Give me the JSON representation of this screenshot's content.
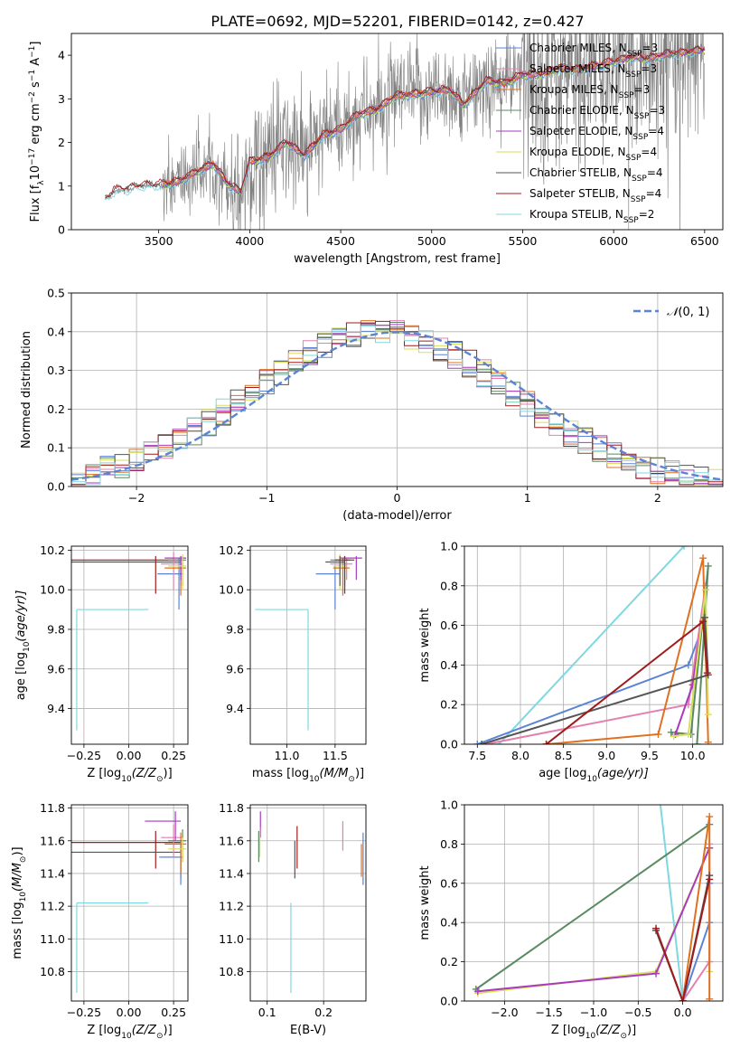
{
  "figure": {
    "title": "PLATE=0692, MJD=52201, FIBERID=0142, z=0.427"
  },
  "colors": {
    "chabrier_miles": "#5b84d6",
    "salpeter_miles": "#e47fb0",
    "kroupa_miles": "#e0701e",
    "chabrier_elodie": "#5a8a60",
    "salpeter_elodie": "#a93ac0",
    "kroupa_elodie": "#d8df5a",
    "chabrier_stelib": "#555555",
    "salpeter_stelib": "#a01c1c",
    "kroupa_stelib": "#7ed8e0",
    "data": "#808080",
    "normal": "#5b84d6",
    "grid": "#b0b0b0"
  },
  "chart_data": [
    {
      "id": "spectrum",
      "type": "line",
      "xlabel": "wavelength [Angstrom, rest frame]",
      "ylabel": "Flux [f",
      "ylabel_sub": "λ",
      "ylabel_rest": "10",
      "ylabel_exp1": "−17",
      "ylabel_mid": " erg cm",
      "ylabel_exp2": "−2",
      "ylabel_mid2": " s",
      "ylabel_exp3": "−1",
      "ylabel_mid3": " A",
      "ylabel_exp4": "−1",
      "ylabel_end": "]",
      "xlim": [
        3020,
        6600
      ],
      "ylim": [
        0,
        4.5
      ],
      "xticks": [
        3500,
        4000,
        4500,
        5000,
        5500,
        6000,
        6500
      ],
      "yticks": [
        0,
        1,
        2,
        3,
        4
      ],
      "legend_position": "top-right",
      "series_shape": [
        [
          3210,
          0.7
        ],
        [
          3260,
          0.9
        ],
        [
          3320,
          0.92
        ],
        [
          3400,
          1.0
        ],
        [
          3500,
          1.02
        ],
        [
          3600,
          1.08
        ],
        [
          3700,
          1.3
        ],
        [
          3800,
          1.5
        ],
        [
          3880,
          1.05
        ],
        [
          3950,
          0.85
        ],
        [
          4000,
          1.55
        ],
        [
          4100,
          1.65
        ],
        [
          4200,
          2.0
        ],
        [
          4300,
          1.7
        ],
        [
          4400,
          2.15
        ],
        [
          4500,
          2.3
        ],
        [
          4600,
          2.65
        ],
        [
          4700,
          2.75
        ],
        [
          4800,
          3.05
        ],
        [
          4900,
          3.1
        ],
        [
          5000,
          3.15
        ],
        [
          5100,
          3.2
        ],
        [
          5175,
          2.85
        ],
        [
          5300,
          3.4
        ],
        [
          5400,
          3.35
        ],
        [
          5500,
          3.55
        ],
        [
          5600,
          3.55
        ],
        [
          5700,
          3.7
        ],
        [
          5800,
          3.65
        ],
        [
          5900,
          3.75
        ],
        [
          6000,
          3.85
        ],
        [
          6100,
          3.95
        ],
        [
          6200,
          3.92
        ],
        [
          6300,
          4.02
        ],
        [
          6400,
          4.06
        ],
        [
          6500,
          4.12
        ]
      ],
      "legend": [
        {
          "label": "Chabrier MILES, N",
          "sub": "SSP",
          "suffix": "=3",
          "color_key": "chabrier_miles"
        },
        {
          "label": "Salpeter MILES, N",
          "sub": "SSP",
          "suffix": "=3",
          "color_key": "salpeter_miles"
        },
        {
          "label": "Kroupa MILES, N",
          "sub": "SSP",
          "suffix": "=3",
          "color_key": "kroupa_miles"
        },
        {
          "label": "Chabrier ELODIE, N",
          "sub": "SSP",
          "suffix": "=3",
          "color_key": "chabrier_elodie"
        },
        {
          "label": "Salpeter ELODIE, N",
          "sub": "SSP",
          "suffix": "=4",
          "color_key": "salpeter_elodie"
        },
        {
          "label": "Kroupa ELODIE, N",
          "sub": "SSP",
          "suffix": "=4",
          "color_key": "kroupa_elodie"
        },
        {
          "label": "Chabrier STELIB, N",
          "sub": "SSP",
          "suffix": "=4",
          "color_key": "chabrier_stelib"
        },
        {
          "label": "Salpeter STELIB, N",
          "sub": "SSP",
          "suffix": "=4",
          "color_key": "salpeter_stelib"
        },
        {
          "label": "Kroupa STELIB, N",
          "sub": "SSP",
          "suffix": "=2",
          "color_key": "kroupa_stelib"
        }
      ]
    },
    {
      "id": "residuals",
      "type": "line",
      "xlabel": "(data-model)/error",
      "ylabel": "Normed distribution",
      "xlim": [
        -2.5,
        2.5
      ],
      "ylim": [
        0,
        0.5
      ],
      "xticks": [
        -2,
        -1,
        0,
        1,
        2
      ],
      "xticklabels": [
        "−2",
        "−1",
        "0",
        "1",
        "2"
      ],
      "yticks": [
        0.0,
        0.1,
        0.2,
        0.3,
        0.4,
        0.5
      ],
      "yticklabels": [
        "0.0",
        "0.1",
        "0.2",
        "0.3",
        "0.4",
        "0.5"
      ],
      "legend_label": "(0, 1)",
      "legend_symbol": "𝒩",
      "legend_position": "top-right",
      "bins": 45
    },
    {
      "id": "age_Z",
      "type": "scatter",
      "xlabel": "Z [log",
      "xlabel_sub": "10",
      "xlabel_mid": "(Z/Z",
      "xlabel_sun": "⊙",
      "xlabel_end": ")]",
      "ylabel": "age  [log",
      "ylabel_sub": "10",
      "ylabel_end": "(age/yr)]",
      "xlim": [
        -0.32,
        0.33
      ],
      "ylim": [
        9.22,
        10.22
      ],
      "xticks": [
        -0.25,
        0.0,
        0.25
      ],
      "xticklabels": [
        "−0.25",
        "0.00",
        "0.25"
      ],
      "yticks": [
        9.4,
        9.6,
        9.8,
        10.0,
        10.2
      ],
      "yticklabels": [
        "9.4",
        "9.6",
        "9.8",
        "10.0",
        "10.2"
      ],
      "points": [
        {
          "key": "kroupa_stelib",
          "x": -0.29,
          "y": 9.9,
          "x0": -0.29,
          "x1": 0.11,
          "y0": 9.29,
          "y1": 9.9
        },
        {
          "key": "salpeter_stelib",
          "x": 0.15,
          "y": 10.15,
          "x0": -0.32,
          "x1": 0.29,
          "y0": 9.98,
          "y1": 10.17
        },
        {
          "key": "chabrier_stelib",
          "x": 0.29,
          "y": 10.14,
          "x0": -0.32,
          "x1": 0.29,
          "y0": 10.02,
          "y1": 10.17
        },
        {
          "key": "chabrier_miles",
          "x": 0.28,
          "y": 10.08,
          "x0": 0.16,
          "x1": 0.3,
          "y0": 9.9,
          "y1": 10.16
        },
        {
          "key": "salpeter_miles",
          "x": 0.25,
          "y": 10.13,
          "x0": 0.18,
          "x1": 0.3,
          "y0": 10.0,
          "y1": 10.19
        },
        {
          "key": "kroupa_miles",
          "x": 0.29,
          "y": 10.11,
          "x0": 0.2,
          "x1": 0.32,
          "y0": 9.97,
          "y1": 10.16
        },
        {
          "key": "chabrier_elodie",
          "x": 0.3,
          "y": 10.15,
          "x0": 0.22,
          "x1": 0.32,
          "y0": 10.02,
          "y1": 10.17
        },
        {
          "key": "salpeter_elodie",
          "x": 0.29,
          "y": 10.16,
          "x0": 0.2,
          "x1": 0.32,
          "y0": 10.05,
          "y1": 10.17
        },
        {
          "key": "kroupa_elodie",
          "x": 0.3,
          "y": 10.12,
          "x0": 0.22,
          "x1": 0.32,
          "y0": 10.0,
          "y1": 10.18
        }
      ]
    },
    {
      "id": "age_mass",
      "type": "scatter",
      "xlabel": "mass [log",
      "xlabel_sub": "10",
      "xlabel_mid": "(M/M",
      "xlabel_sun": "⊙",
      "xlabel_end": ")]",
      "xlim": [
        10.62,
        11.82
      ],
      "ylim": [
        9.22,
        10.22
      ],
      "xticks": [
        11.0,
        11.5
      ],
      "xticklabels": [
        "11.0",
        "11.5"
      ],
      "yticks": [
        9.4,
        9.6,
        9.8,
        10.0,
        10.2
      ],
      "yticklabels": [
        "9.4",
        "9.6",
        "9.8",
        "10.0",
        "10.2"
      ],
      "points": [
        {
          "key": "kroupa_stelib",
          "x": 11.22,
          "y": 9.9,
          "x0": 10.67,
          "x1": 11.22,
          "y0": 9.29,
          "y1": 9.9
        },
        {
          "key": "chabrier_miles",
          "x": 11.5,
          "y": 10.08,
          "x0": 11.3,
          "x1": 11.55,
          "y0": 9.9,
          "y1": 10.12
        },
        {
          "key": "salpeter_miles",
          "x": 11.62,
          "y": 10.13,
          "x0": 11.45,
          "x1": 11.68,
          "y0": 10.05,
          "y1": 10.16
        },
        {
          "key": "kroupa_miles",
          "x": 11.58,
          "y": 10.11,
          "x0": 11.48,
          "x1": 11.65,
          "y0": 9.97,
          "y1": 10.16
        },
        {
          "key": "chabrier_elodie",
          "x": 11.6,
          "y": 10.15,
          "x0": 11.45,
          "x1": 11.66,
          "y0": 10.02,
          "y1": 10.17
        },
        {
          "key": "salpeter_elodie",
          "x": 11.72,
          "y": 10.16,
          "x0": 11.55,
          "x1": 11.78,
          "y0": 10.05,
          "y1": 10.17
        },
        {
          "key": "kroupa_elodie",
          "x": 11.55,
          "y": 10.12,
          "x0": 11.48,
          "x1": 11.62,
          "y0": 10.0,
          "y1": 10.18
        },
        {
          "key": "chabrier_stelib",
          "x": 11.55,
          "y": 10.14,
          "x0": 11.4,
          "x1": 11.6,
          "y0": 10.02,
          "y1": 10.17
        },
        {
          "key": "salpeter_stelib",
          "x": 11.6,
          "y": 10.15,
          "x0": 11.5,
          "x1": 11.7,
          "y0": 9.98,
          "y1": 10.17
        }
      ]
    },
    {
      "id": "weight_age",
      "type": "line",
      "xlabel": "age  [log",
      "xlabel_sub": "10",
      "xlabel_end": "(age/yr)]",
      "ylabel": "mass weight",
      "xlim": [
        7.35,
        10.35
      ],
      "ylim": [
        0.0,
        1.0
      ],
      "xticks": [
        7.5,
        8.0,
        8.5,
        9.0,
        9.5,
        10.0
      ],
      "xticklabels": [
        "7.5",
        "8.0",
        "8.5",
        "9.0",
        "9.5",
        "10.0"
      ],
      "yticks": [
        0.0,
        0.2,
        0.4,
        0.6,
        0.8,
        1.0
      ],
      "yticklabels": [
        "0.0",
        "0.2",
        "0.4",
        "0.6",
        "0.8",
        "1.0"
      ],
      "series": [
        {
          "key": "kroupa_stelib",
          "x": [
            7.75,
            9.9,
            10.35
          ],
          "y": [
            0.0,
            1.0,
            1.2
          ]
        },
        {
          "key": "chabrier_miles",
          "x": [
            7.5,
            9.95,
            10.12
          ],
          "y": [
            0.0,
            0.4,
            0.6
          ]
        },
        {
          "key": "salpeter_miles",
          "x": [
            7.6,
            9.95,
            10.15
          ],
          "y": [
            0.0,
            0.2,
            0.8
          ]
        },
        {
          "key": "kroupa_miles",
          "x": [
            8.3,
            9.6,
            10.12,
            10.18
          ],
          "y": [
            0.0,
            0.05,
            0.94,
            0.01
          ]
        },
        {
          "key": "chabrier_elodie",
          "x": [
            9.75,
            9.98,
            10.18,
            10.05
          ],
          "y": [
            0.06,
            0.05,
            0.9,
            0.0
          ]
        },
        {
          "key": "salpeter_elodie",
          "x": [
            9.8,
            10.0,
            10.1,
            10.15
          ],
          "y": [
            0.05,
            0.3,
            0.6,
            0.78
          ]
        },
        {
          "key": "kroupa_elodie",
          "x": [
            9.78,
            9.95,
            10.15,
            10.18
          ],
          "y": [
            0.04,
            0.05,
            0.78,
            0.15
          ]
        },
        {
          "key": "chabrier_stelib",
          "x": [
            7.55,
            10.18,
            10.14
          ],
          "y": [
            0.0,
            0.35,
            0.64
          ]
        },
        {
          "key": "salpeter_stelib",
          "x": [
            8.3,
            10.12,
            10.17
          ],
          "y": [
            0.0,
            0.62,
            0.36
          ]
        }
      ]
    },
    {
      "id": "mass_Z",
      "type": "scatter",
      "xlabel": "Z [log",
      "xlabel_sub": "10",
      "xlabel_mid": "(Z/Z",
      "xlabel_sun": "⊙",
      "xlabel_end": ")]",
      "ylabel": "mass [log",
      "ylabel_sub": "10",
      "ylabel_mid": "(M/M",
      "ylabel_sun": "⊙",
      "ylabel_end": ")]",
      "xlim": [
        -0.32,
        0.33
      ],
      "ylim": [
        10.62,
        11.82
      ],
      "xticks": [
        -0.25,
        0.0,
        0.25
      ],
      "xticklabels": [
        "−0.25",
        "0.00",
        "0.25"
      ],
      "yticks": [
        10.8,
        11.0,
        11.2,
        11.4,
        11.6,
        11.8
      ],
      "yticklabels": [
        "10.8",
        "11.0",
        "11.2",
        "11.4",
        "11.6",
        "11.8"
      ],
      "points": [
        {
          "key": "kroupa_stelib",
          "x": -0.29,
          "y": 11.22,
          "x0": -0.29,
          "x1": 0.11,
          "y0": 10.67,
          "y1": 11.22
        },
        {
          "key": "salpeter_stelib",
          "x": 0.15,
          "y": 11.59,
          "x0": -0.32,
          "x1": 0.29,
          "y0": 11.43,
          "y1": 11.66
        },
        {
          "key": "chabrier_stelib",
          "x": 0.29,
          "y": 11.53,
          "x0": -0.32,
          "x1": 0.29,
          "y0": 11.37,
          "y1": 11.6
        },
        {
          "key": "chabrier_miles",
          "x": 0.29,
          "y": 11.5,
          "x0": 0.17,
          "x1": 0.3,
          "y0": 11.33,
          "y1": 11.58
        },
        {
          "key": "salpeter_miles",
          "x": 0.25,
          "y": 11.62,
          "x0": 0.18,
          "x1": 0.3,
          "y0": 11.5,
          "y1": 11.7
        },
        {
          "key": "kroupa_miles",
          "x": 0.29,
          "y": 11.58,
          "x0": 0.2,
          "x1": 0.32,
          "y0": 11.4,
          "y1": 11.65
        },
        {
          "key": "chabrier_elodie",
          "x": 0.3,
          "y": 11.6,
          "x0": 0.22,
          "x1": 0.32,
          "y0": 11.47,
          "y1": 11.67
        },
        {
          "key": "salpeter_elodie",
          "x": 0.26,
          "y": 11.72,
          "x0": 0.09,
          "x1": 0.29,
          "y0": 11.6,
          "y1": 11.78
        },
        {
          "key": "kroupa_elodie",
          "x": 0.3,
          "y": 11.55,
          "x0": 0.22,
          "x1": 0.32,
          "y0": 11.47,
          "y1": 11.62
        }
      ]
    },
    {
      "id": "mass_ebv",
      "type": "scatter",
      "xlabel": "E(B-V)",
      "xlim": [
        0.07,
        0.275
      ],
      "ylim": [
        10.62,
        11.82
      ],
      "xticks": [
        0.1,
        0.2
      ],
      "xticklabels": [
        "0.1",
        "0.2"
      ],
      "yticks": [
        10.8,
        11.0,
        11.2,
        11.4,
        11.6,
        11.8
      ],
      "yticklabels": [
        "10.8",
        "11.0",
        "11.2",
        "11.4",
        "11.6",
        "11.8"
      ],
      "points": [
        {
          "key": "kroupa_stelib",
          "x": 0.142,
          "y0": 10.67,
          "y1": 11.22
        },
        {
          "key": "chabrier_stelib",
          "x": 0.149,
          "y0": 11.37,
          "y1": 11.6
        },
        {
          "key": "salpeter_stelib",
          "x": 0.153,
          "y0": 11.43,
          "y1": 11.69
        },
        {
          "key": "salpeter_miles",
          "x": 0.234,
          "y0": 11.54,
          "y1": 11.72
        },
        {
          "key": "chabrier_miles",
          "x": 0.27,
          "y0": 11.33,
          "y1": 11.65
        },
        {
          "key": "kroupa_miles",
          "x": 0.267,
          "y0": 11.38,
          "y1": 11.58
        },
        {
          "key": "salpeter_elodie",
          "x": 0.088,
          "y0": 11.62,
          "y1": 11.78
        },
        {
          "key": "chabrier_elodie",
          "x": 0.085,
          "y0": 11.47,
          "y1": 11.66
        },
        {
          "key": "kroupa_elodie",
          "x": 0.087,
          "y0": 11.5,
          "y1": 11.68
        }
      ]
    },
    {
      "id": "weight_Z",
      "type": "line",
      "xlabel": "Z [log",
      "xlabel_sub": "10",
      "xlabel_mid": "(Z/Z",
      "xlabel_sun": "⊙",
      "xlabel_end": ")]",
      "ylabel": "mass weight",
      "xlim": [
        -2.45,
        0.45
      ],
      "ylim": [
        0.0,
        1.0
      ],
      "xticks": [
        -2.0,
        -1.5,
        -1.0,
        -0.5,
        0.0
      ],
      "xticklabels": [
        "−2.0",
        "−1.5",
        "−1.0",
        "−0.5",
        "0.0"
      ],
      "yticks": [
        0.0,
        0.2,
        0.4,
        0.6,
        0.8,
        1.0
      ],
      "yticklabels": [
        "0.0",
        "0.2",
        "0.4",
        "0.6",
        "0.8",
        "1.0"
      ],
      "series": [
        {
          "key": "kroupa_stelib",
          "x": [
            -0.3,
            0.0
          ],
          "y": [
            1.2,
            0.0
          ]
        },
        {
          "key": "chabrier_elodie",
          "x": [
            -2.32,
            0.3
          ],
          "y": [
            0.06,
            0.9
          ]
        },
        {
          "key": "kroupa_elodie",
          "x": [
            -2.3,
            -0.3,
            0.3,
            0.3
          ],
          "y": [
            0.04,
            0.15,
            0.78,
            0.15
          ]
        },
        {
          "key": "salpeter_elodie",
          "x": [
            -2.3,
            -0.3,
            0.3
          ],
          "y": [
            0.05,
            0.14,
            0.78
          ]
        },
        {
          "key": "chabrier_miles",
          "x": [
            0.0,
            0.3,
            0.3
          ],
          "y": [
            0.0,
            0.4,
            0.6
          ]
        },
        {
          "key": "salpeter_miles",
          "x": [
            0.0,
            0.3,
            0.3
          ],
          "y": [
            0.0,
            0.2,
            0.8
          ]
        },
        {
          "key": "kroupa_miles",
          "x": [
            0.0,
            0.3,
            0.3
          ],
          "y": [
            0.0,
            0.94,
            0.01
          ]
        },
        {
          "key": "chabrier_stelib",
          "x": [
            -0.3,
            0.0,
            0.3
          ],
          "y": [
            0.36,
            0.0,
            0.64
          ]
        },
        {
          "key": "salpeter_stelib",
          "x": [
            -0.3,
            0.0,
            0.3
          ],
          "y": [
            0.37,
            0.0,
            0.62
          ]
        }
      ]
    }
  ]
}
